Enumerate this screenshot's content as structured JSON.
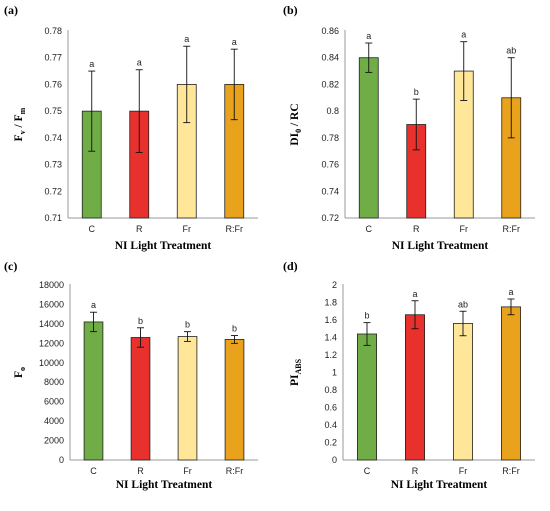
{
  "chart_data": [
    {
      "panel": "(a)",
      "type": "bar",
      "ylabel_main": "F",
      "ylabel_sub1": "v",
      "ylabel_sep": " / F",
      "ylabel_sub2": "m",
      "xlabel": "NI Light Treatment",
      "categories": [
        "C",
        "R",
        "Fr",
        "R:Fr"
      ],
      "values": [
        0.75,
        0.75,
        0.76,
        0.76
      ],
      "errors": [
        0.015,
        0.0155,
        0.0143,
        0.0132
      ],
      "labels": [
        "a",
        "a",
        "a",
        "a"
      ],
      "ylim": [
        0.71,
        0.78
      ],
      "yticks": [
        "0.71",
        "0.72",
        "0.73",
        "0.74",
        "0.75",
        "0.76",
        "0.77",
        "0.78"
      ]
    },
    {
      "panel": "(b)",
      "type": "bar",
      "ylabel_main": "DI",
      "ylabel_sub1": "0",
      "ylabel_sep": " / RC",
      "ylabel_sub2": "",
      "xlabel": "NI Light Treatment",
      "categories": [
        "C",
        "R",
        "Fr",
        "R:Fr"
      ],
      "values": [
        0.84,
        0.79,
        0.83,
        0.81
      ],
      "errors": [
        0.011,
        0.019,
        0.022,
        0.03
      ],
      "labels": [
        "a",
        "b",
        "a",
        "ab"
      ],
      "ylim": [
        0.72,
        0.86
      ],
      "yticks": [
        "0.72",
        "0.74",
        "0.76",
        "0.78",
        "0.8",
        "0.82",
        "0.84",
        "0.86"
      ]
    },
    {
      "panel": "(c)",
      "type": "bar",
      "ylabel_main": "F",
      "ylabel_sub1": "o",
      "ylabel_sep": "",
      "ylabel_sub2": "",
      "xlabel": "NI Light Treatment",
      "categories": [
        "C",
        "R",
        "Fr",
        "R:Fr"
      ],
      "values": [
        14200,
        12600,
        12700,
        12400
      ],
      "errors": [
        1000,
        1000,
        500,
        400
      ],
      "labels": [
        "a",
        "b",
        "b",
        "b"
      ],
      "ylim": [
        0,
        18000
      ],
      "yticks": [
        "0",
        "2000",
        "4000",
        "6000",
        "8000",
        "10000",
        "12000",
        "14000",
        "16000",
        "18000"
      ]
    },
    {
      "panel": "(d)",
      "type": "bar",
      "ylabel_main": "PI",
      "ylabel_sub1": "ABS",
      "ylabel_sep": "",
      "ylabel_sub2": "",
      "xlabel": "NI Light Treatment",
      "categories": [
        "C",
        "R",
        "Fr",
        "R:Fr"
      ],
      "values": [
        1.44,
        1.66,
        1.56,
        1.75
      ],
      "errors": [
        0.13,
        0.16,
        0.14,
        0.09
      ],
      "labels": [
        "b",
        "a",
        "ab",
        "a"
      ],
      "ylim": [
        0,
        2
      ],
      "yticks": [
        "0",
        "0.2",
        "0.4",
        "0.6",
        "0.8",
        "1",
        "1.2",
        "1.4",
        "1.6",
        "1.8",
        "2"
      ]
    }
  ],
  "colors": {
    "C": "#70ad47",
    "R": "#e8312c",
    "Fr": "#ffe699",
    "R:Fr": "#e8a21c"
  }
}
